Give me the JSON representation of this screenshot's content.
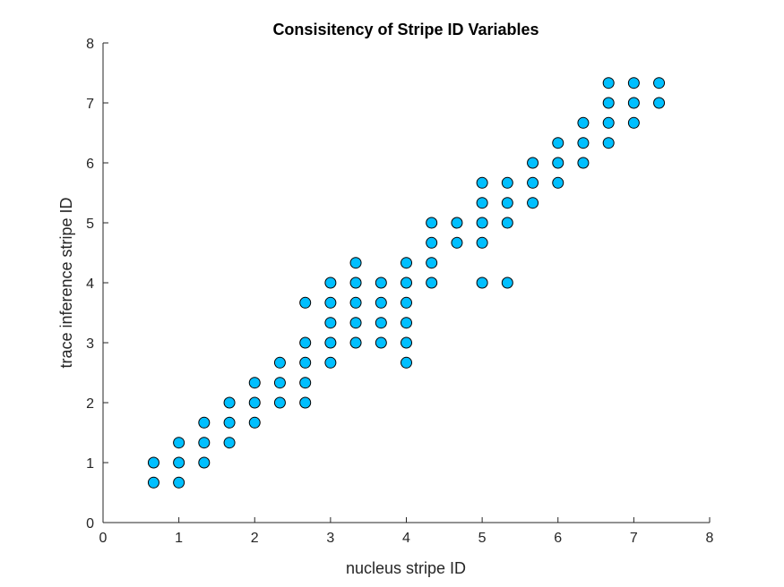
{
  "chart_data": {
    "type": "scatter",
    "title": "Consisitency of Stripe ID Variables",
    "xlabel": "nucleus stripe ID",
    "ylabel": "trace inference stripe ID",
    "xlim": [
      0,
      8
    ],
    "ylim": [
      0,
      8
    ],
    "x_ticks": [
      "0",
      "1",
      "2",
      "3",
      "4",
      "5",
      "6",
      "7",
      "8"
    ],
    "y_ticks": [
      "0",
      "1",
      "2",
      "3",
      "4",
      "5",
      "6",
      "7",
      "8"
    ],
    "grid": false,
    "legend": "none",
    "marker_fill_color": "#00bfff",
    "marker_edge_color": "#000000",
    "series": [
      {
        "points": [
          [
            0.667,
            0.667
          ],
          [
            0.667,
            1.0
          ],
          [
            1.0,
            0.667
          ],
          [
            1.0,
            1.0
          ],
          [
            1.0,
            1.333
          ],
          [
            1.333,
            1.0
          ],
          [
            1.333,
            1.333
          ],
          [
            1.333,
            1.667
          ],
          [
            1.667,
            1.333
          ],
          [
            1.667,
            1.667
          ],
          [
            1.667,
            2.0
          ],
          [
            2.0,
            1.667
          ],
          [
            2.0,
            2.0
          ],
          [
            2.0,
            2.333
          ],
          [
            2.333,
            2.0
          ],
          [
            2.333,
            2.333
          ],
          [
            2.333,
            2.667
          ],
          [
            2.667,
            2.0
          ],
          [
            2.667,
            2.333
          ],
          [
            2.667,
            2.667
          ],
          [
            2.667,
            3.0
          ],
          [
            2.667,
            3.667
          ],
          [
            3.0,
            2.667
          ],
          [
            3.0,
            3.0
          ],
          [
            3.0,
            3.333
          ],
          [
            3.0,
            3.667
          ],
          [
            3.0,
            4.0
          ],
          [
            3.333,
            3.0
          ],
          [
            3.333,
            3.333
          ],
          [
            3.333,
            3.667
          ],
          [
            3.333,
            4.0
          ],
          [
            3.333,
            4.333
          ],
          [
            3.667,
            3.0
          ],
          [
            3.667,
            3.333
          ],
          [
            3.667,
            3.667
          ],
          [
            3.667,
            4.0
          ],
          [
            4.0,
            2.667
          ],
          [
            4.0,
            3.0
          ],
          [
            4.0,
            3.333
          ],
          [
            4.0,
            3.667
          ],
          [
            4.0,
            4.0
          ],
          [
            4.0,
            4.333
          ],
          [
            4.333,
            4.0
          ],
          [
            4.333,
            4.333
          ],
          [
            4.333,
            4.667
          ],
          [
            4.333,
            5.0
          ],
          [
            4.667,
            4.667
          ],
          [
            4.667,
            5.0
          ],
          [
            5.0,
            4.0
          ],
          [
            5.0,
            4.667
          ],
          [
            5.0,
            5.0
          ],
          [
            5.0,
            5.333
          ],
          [
            5.0,
            5.667
          ],
          [
            5.333,
            4.0
          ],
          [
            5.333,
            5.0
          ],
          [
            5.333,
            5.333
          ],
          [
            5.333,
            5.667
          ],
          [
            5.667,
            5.333
          ],
          [
            5.667,
            5.667
          ],
          [
            5.667,
            6.0
          ],
          [
            6.0,
            5.667
          ],
          [
            6.0,
            6.0
          ],
          [
            6.0,
            6.333
          ],
          [
            6.333,
            6.0
          ],
          [
            6.333,
            6.333
          ],
          [
            6.333,
            6.667
          ],
          [
            6.667,
            6.333
          ],
          [
            6.667,
            6.667
          ],
          [
            6.667,
            7.0
          ],
          [
            6.667,
            7.333
          ],
          [
            7.0,
            6.667
          ],
          [
            7.0,
            7.0
          ],
          [
            7.0,
            7.333
          ],
          [
            7.333,
            7.0
          ],
          [
            7.333,
            7.333
          ]
        ]
      }
    ]
  }
}
